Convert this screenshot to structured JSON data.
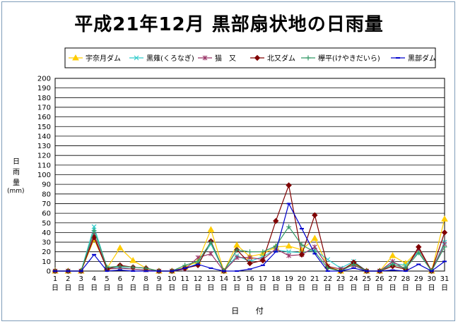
{
  "chart_data": {
    "type": "line",
    "title": "平成21年12月 黒部扇状地の日雨量",
    "xlabel": "日 付",
    "ylabel": "日雨量",
    "yunit": "(mm)",
    "x": [
      1,
      2,
      3,
      4,
      5,
      6,
      7,
      8,
      9,
      10,
      11,
      12,
      13,
      14,
      15,
      16,
      17,
      18,
      19,
      20,
      21,
      22,
      23,
      24,
      25,
      26,
      27,
      28,
      29,
      30,
      31
    ],
    "x_suffix": "日",
    "ylim": [
      0,
      200
    ],
    "ytick_step": 10,
    "grid": true,
    "legend_position": "top",
    "series": [
      {
        "name": "宇奈月ダム",
        "color": "#ffcc00",
        "marker": "triangle",
        "values": [
          0,
          0,
          0,
          33,
          3,
          24,
          11,
          3,
          0,
          0,
          4,
          10,
          43,
          0,
          27,
          15,
          18,
          25,
          26,
          22,
          34,
          5,
          0,
          8,
          0,
          0,
          16,
          8,
          22,
          0,
          54
        ]
      },
      {
        "name": "黒薙(くろなぎ)",
        "color": "#33cccc",
        "marker": "x",
        "values": [
          0,
          0,
          0,
          46,
          3,
          4,
          2,
          1,
          0,
          0,
          2,
          8,
          28,
          0,
          16,
          10,
          15,
          22,
          20,
          19,
          22,
          12,
          3,
          10,
          0,
          0,
          8,
          6,
          20,
          0,
          30
        ]
      },
      {
        "name": "猫　又",
        "color": "#993366",
        "marker": "asterisk",
        "values": [
          0,
          0,
          0,
          38,
          2,
          3,
          2,
          1,
          0,
          0,
          2,
          14,
          18,
          0,
          14,
          14,
          12,
          23,
          16,
          17,
          25,
          5,
          2,
          6,
          0,
          0,
          10,
          2,
          23,
          0,
          28
        ]
      },
      {
        "name": "北又ダム",
        "color": "#800000",
        "marker": "diamond",
        "values": [
          0,
          0,
          0,
          35,
          2,
          6,
          4,
          3,
          0,
          0,
          3,
          6,
          31,
          0,
          22,
          8,
          11,
          52,
          89,
          17,
          58,
          4,
          0,
          9,
          0,
          0,
          5,
          2,
          25,
          0,
          40
        ]
      },
      {
        "name": "欅平(けやきだいら)",
        "color": "#339966",
        "marker": "plus",
        "values": [
          0,
          0,
          0,
          42,
          4,
          5,
          4,
          3,
          0,
          0,
          6,
          10,
          30,
          0,
          22,
          20,
          20,
          26,
          46,
          27,
          20,
          3,
          0,
          7,
          0,
          0,
          7,
          3,
          19,
          0,
          25
        ]
      },
      {
        "name": "黒部ダム",
        "color": "#0000cc",
        "marker": "dash",
        "values": [
          0,
          0,
          0,
          17,
          0,
          1,
          0,
          0,
          0,
          0,
          3,
          7,
          3,
          0,
          0,
          2,
          6,
          20,
          70,
          44,
          18,
          0,
          0,
          3,
          0,
          0,
          1,
          0,
          7,
          0,
          10
        ]
      }
    ]
  }
}
